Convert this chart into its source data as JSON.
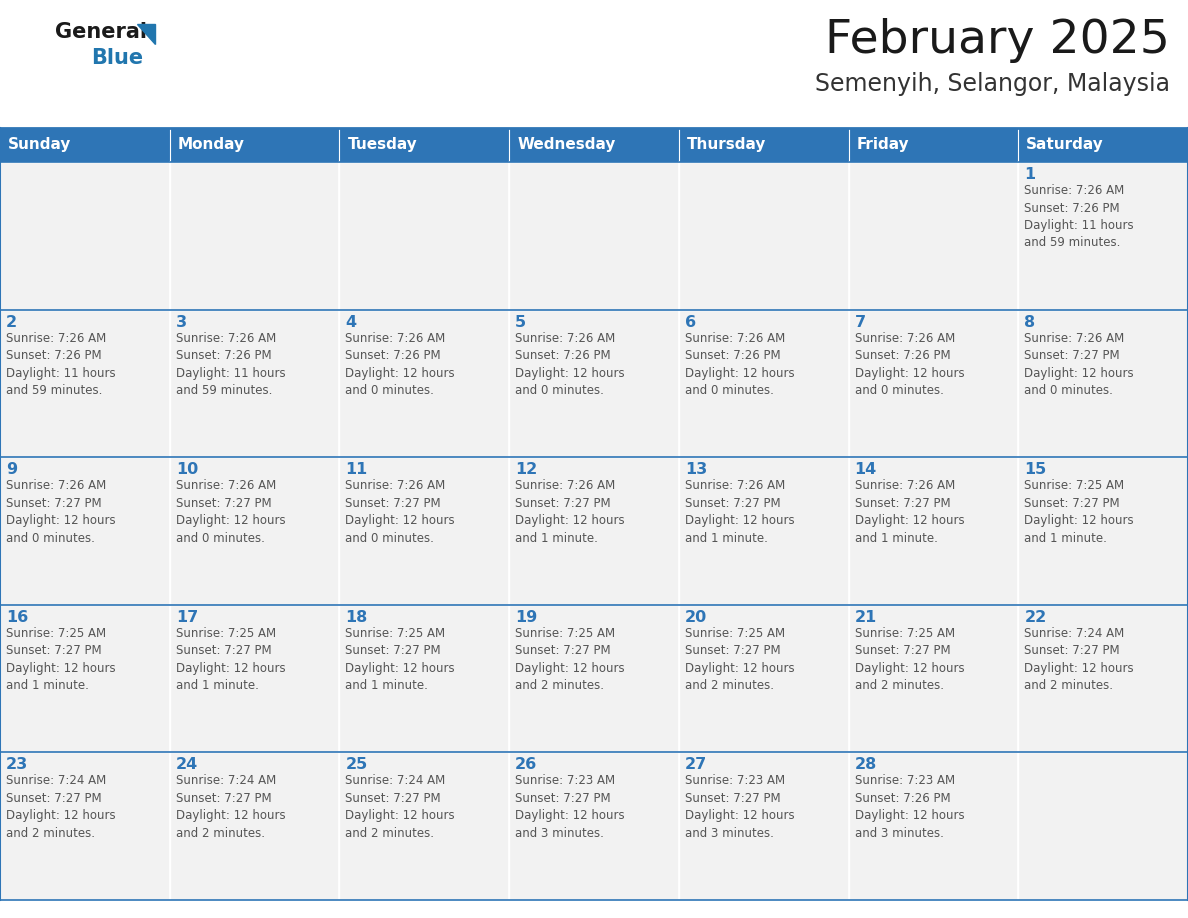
{
  "title": "February 2025",
  "subtitle": "Semenyih, Selangor, Malaysia",
  "header_bg": "#2E75B6",
  "header_text_color": "#FFFFFF",
  "cell_bg": "#F2F2F2",
  "border_color": "#2E75B6",
  "day_names": [
    "Sunday",
    "Monday",
    "Tuesday",
    "Wednesday",
    "Thursday",
    "Friday",
    "Saturday"
  ],
  "title_color": "#1A1A1A",
  "subtitle_color": "#333333",
  "day_number_color": "#2E75B6",
  "cell_text_color": "#555555",
  "logo_general_color": "#1A1A1A",
  "logo_blue_color": "#2176AE",
  "fig_width": 11.88,
  "fig_height": 9.18,
  "weeks": [
    [
      {
        "day": null,
        "info": null
      },
      {
        "day": null,
        "info": null
      },
      {
        "day": null,
        "info": null
      },
      {
        "day": null,
        "info": null
      },
      {
        "day": null,
        "info": null
      },
      {
        "day": null,
        "info": null
      },
      {
        "day": 1,
        "info": "Sunrise: 7:26 AM\nSunset: 7:26 PM\nDaylight: 11 hours\nand 59 minutes."
      }
    ],
    [
      {
        "day": 2,
        "info": "Sunrise: 7:26 AM\nSunset: 7:26 PM\nDaylight: 11 hours\nand 59 minutes."
      },
      {
        "day": 3,
        "info": "Sunrise: 7:26 AM\nSunset: 7:26 PM\nDaylight: 11 hours\nand 59 minutes."
      },
      {
        "day": 4,
        "info": "Sunrise: 7:26 AM\nSunset: 7:26 PM\nDaylight: 12 hours\nand 0 minutes."
      },
      {
        "day": 5,
        "info": "Sunrise: 7:26 AM\nSunset: 7:26 PM\nDaylight: 12 hours\nand 0 minutes."
      },
      {
        "day": 6,
        "info": "Sunrise: 7:26 AM\nSunset: 7:26 PM\nDaylight: 12 hours\nand 0 minutes."
      },
      {
        "day": 7,
        "info": "Sunrise: 7:26 AM\nSunset: 7:26 PM\nDaylight: 12 hours\nand 0 minutes."
      },
      {
        "day": 8,
        "info": "Sunrise: 7:26 AM\nSunset: 7:27 PM\nDaylight: 12 hours\nand 0 minutes."
      }
    ],
    [
      {
        "day": 9,
        "info": "Sunrise: 7:26 AM\nSunset: 7:27 PM\nDaylight: 12 hours\nand 0 minutes."
      },
      {
        "day": 10,
        "info": "Sunrise: 7:26 AM\nSunset: 7:27 PM\nDaylight: 12 hours\nand 0 minutes."
      },
      {
        "day": 11,
        "info": "Sunrise: 7:26 AM\nSunset: 7:27 PM\nDaylight: 12 hours\nand 0 minutes."
      },
      {
        "day": 12,
        "info": "Sunrise: 7:26 AM\nSunset: 7:27 PM\nDaylight: 12 hours\nand 1 minute."
      },
      {
        "day": 13,
        "info": "Sunrise: 7:26 AM\nSunset: 7:27 PM\nDaylight: 12 hours\nand 1 minute."
      },
      {
        "day": 14,
        "info": "Sunrise: 7:26 AM\nSunset: 7:27 PM\nDaylight: 12 hours\nand 1 minute."
      },
      {
        "day": 15,
        "info": "Sunrise: 7:25 AM\nSunset: 7:27 PM\nDaylight: 12 hours\nand 1 minute."
      }
    ],
    [
      {
        "day": 16,
        "info": "Sunrise: 7:25 AM\nSunset: 7:27 PM\nDaylight: 12 hours\nand 1 minute."
      },
      {
        "day": 17,
        "info": "Sunrise: 7:25 AM\nSunset: 7:27 PM\nDaylight: 12 hours\nand 1 minute."
      },
      {
        "day": 18,
        "info": "Sunrise: 7:25 AM\nSunset: 7:27 PM\nDaylight: 12 hours\nand 1 minute."
      },
      {
        "day": 19,
        "info": "Sunrise: 7:25 AM\nSunset: 7:27 PM\nDaylight: 12 hours\nand 2 minutes."
      },
      {
        "day": 20,
        "info": "Sunrise: 7:25 AM\nSunset: 7:27 PM\nDaylight: 12 hours\nand 2 minutes."
      },
      {
        "day": 21,
        "info": "Sunrise: 7:25 AM\nSunset: 7:27 PM\nDaylight: 12 hours\nand 2 minutes."
      },
      {
        "day": 22,
        "info": "Sunrise: 7:24 AM\nSunset: 7:27 PM\nDaylight: 12 hours\nand 2 minutes."
      }
    ],
    [
      {
        "day": 23,
        "info": "Sunrise: 7:24 AM\nSunset: 7:27 PM\nDaylight: 12 hours\nand 2 minutes."
      },
      {
        "day": 24,
        "info": "Sunrise: 7:24 AM\nSunset: 7:27 PM\nDaylight: 12 hours\nand 2 minutes."
      },
      {
        "day": 25,
        "info": "Sunrise: 7:24 AM\nSunset: 7:27 PM\nDaylight: 12 hours\nand 2 minutes."
      },
      {
        "day": 26,
        "info": "Sunrise: 7:23 AM\nSunset: 7:27 PM\nDaylight: 12 hours\nand 3 minutes."
      },
      {
        "day": 27,
        "info": "Sunrise: 7:23 AM\nSunset: 7:27 PM\nDaylight: 12 hours\nand 3 minutes."
      },
      {
        "day": 28,
        "info": "Sunrise: 7:23 AM\nSunset: 7:26 PM\nDaylight: 12 hours\nand 3 minutes."
      },
      {
        "day": null,
        "info": null
      }
    ]
  ]
}
